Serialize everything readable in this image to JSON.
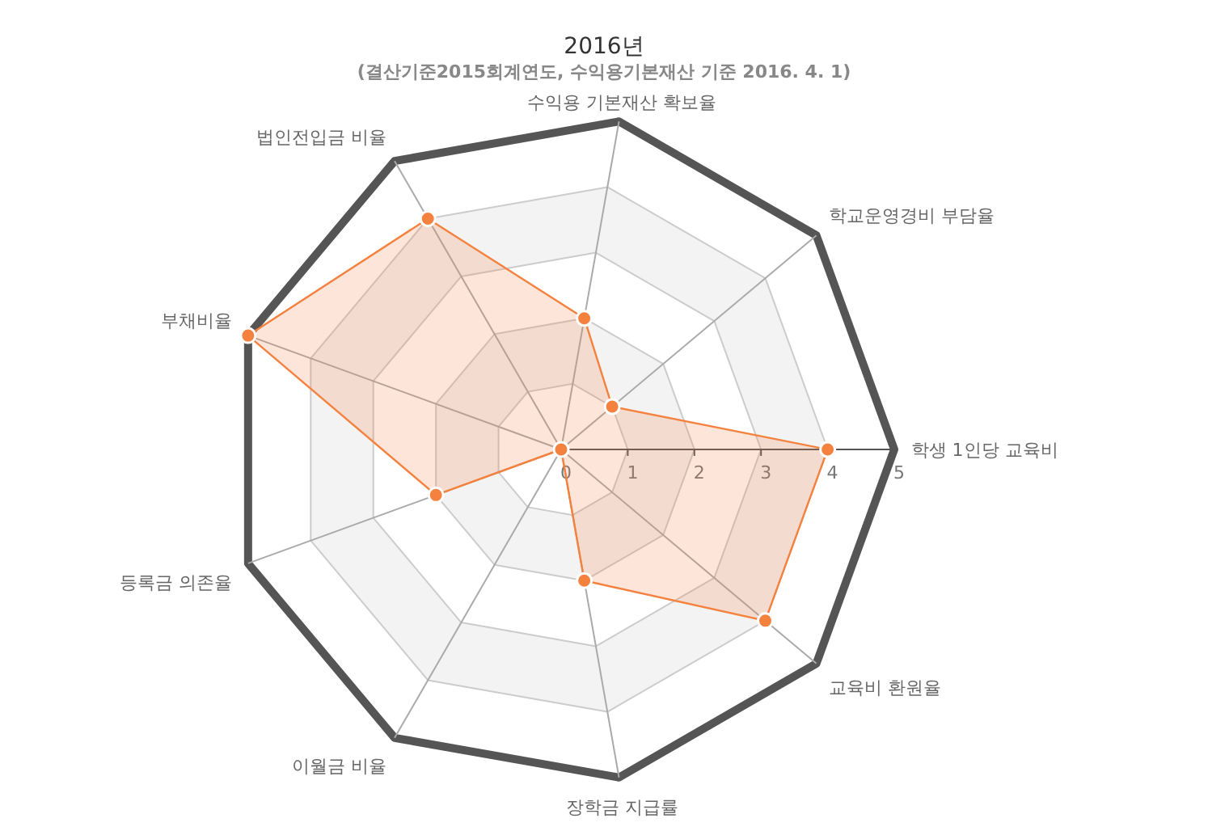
{
  "chart_data": {
    "type": "radar",
    "title": "2016년",
    "subtitle": "(결산기준2015회계연도, 수익용기본재산 기준 2016. 4. 1)",
    "categories": [
      "수익용 기본재산 확보율",
      "학교운영경비 부담율",
      "학생 1인당 교육비",
      "교육비 환원율",
      "장학금 지급률",
      "이월금 비율",
      "등록금 의존율",
      "부채비율",
      "법인전입금 비율"
    ],
    "ylim": [
      0,
      5
    ],
    "yticks": [
      0,
      1,
      2,
      3,
      4,
      5
    ],
    "marker": "circle",
    "series": [
      {
        "color": "#f5813f",
        "values": [
          2,
          1,
          4,
          4,
          2,
          0,
          2,
          5,
          4
        ]
      }
    ]
  }
}
